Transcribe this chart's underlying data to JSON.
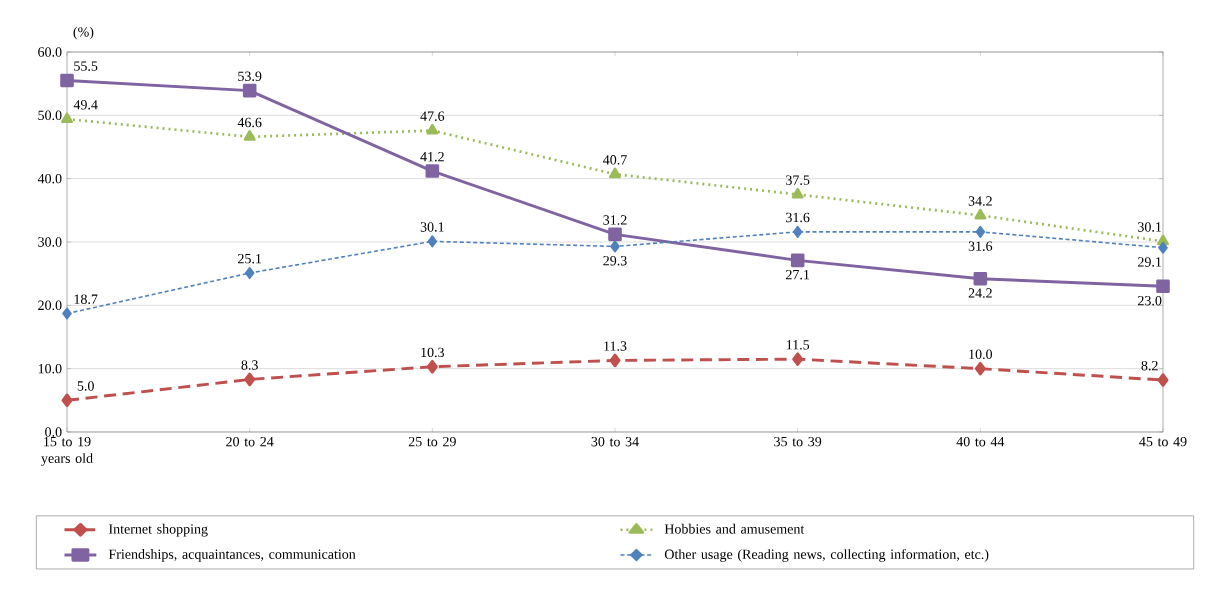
{
  "chart_data": {
    "type": "line",
    "ylabel": "(%)",
    "categories": [
      "15 to 19 years old",
      "20 to 24",
      "25 to 29",
      "30 to 34",
      "35 to 39",
      "40 to 44",
      "45 to 49"
    ],
    "series": [
      {
        "name": "Internet shopping",
        "color": "#c0504d",
        "marker": "diamond",
        "line_style": "dashed",
        "values": [
          5.0,
          8.3,
          10.3,
          11.3,
          11.5,
          10.0,
          8.2
        ],
        "value_labels": [
          "5.0",
          "8.3",
          "10.3",
          "11.3",
          "11.5",
          "10.0",
          "8.2"
        ]
      },
      {
        "name": "Hobbies and amusement",
        "color": "#9bbb59",
        "marker": "triangle",
        "line_style": "dotted",
        "values": [
          49.4,
          46.6,
          47.6,
          40.7,
          37.5,
          34.2,
          30.1
        ],
        "value_labels": [
          "49.4",
          "46.6",
          "47.6",
          "40.7",
          "37.5",
          "34.2",
          "30.1"
        ]
      },
      {
        "name": "Friendships, acquaintances, communication",
        "color": "#8064a2",
        "marker": "square",
        "line_style": "solid",
        "values": [
          55.5,
          53.9,
          41.2,
          31.2,
          27.1,
          24.2,
          23.0
        ],
        "value_labels": [
          "55.5",
          "53.9",
          "41.2",
          "31.2",
          "27.1",
          "24.2",
          "23.0"
        ]
      },
      {
        "name": "Other usage (Reading news, collecting information, etc.)",
        "color": "#4f81bd",
        "marker": "diamond",
        "line_style": "dashed",
        "values": [
          18.7,
          25.1,
          30.1,
          29.3,
          31.6,
          31.6,
          29.1
        ],
        "value_labels": [
          "18.7",
          "25.1",
          "30.1",
          "29.3",
          "31.6",
          "31.6",
          "29.1"
        ]
      }
    ],
    "ylim": [
      0,
      60
    ],
    "yticks": [
      {
        "value": 0,
        "label": "0.0"
      },
      {
        "value": 10,
        "label": "10.0"
      },
      {
        "value": 20,
        "label": "20.0"
      },
      {
        "value": 30,
        "label": "30.0"
      },
      {
        "value": 40,
        "label": "40.0"
      },
      {
        "value": 50,
        "label": "50.0"
      },
      {
        "value": 60,
        "label": "60.0"
      }
    ],
    "grid": "y",
    "legend": "bottom"
  }
}
